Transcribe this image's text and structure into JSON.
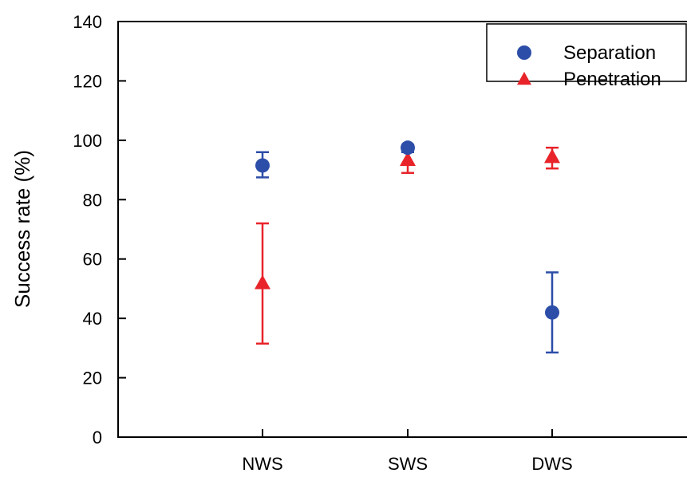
{
  "chart_data": {
    "type": "scatter",
    "title": "",
    "xlabel": "",
    "ylabel": "Success rate (%)",
    "categories": [
      "NWS",
      "SWS",
      "DWS"
    ],
    "ylim": [
      0,
      140
    ],
    "yticks": [
      0,
      20,
      40,
      60,
      80,
      100,
      120,
      140
    ],
    "grid": false,
    "legend_position": "top-right",
    "series": [
      {
        "name": "Separation",
        "marker": "circle",
        "color": "#2d4ea8",
        "values": [
          91.5,
          97.5,
          42
        ],
        "error_low": [
          87.5,
          96,
          28.5
        ],
        "error_high": [
          96,
          98.5,
          55.5
        ]
      },
      {
        "name": "Penetration",
        "marker": "triangle",
        "color": "#e8242a",
        "values": [
          52,
          93.5,
          94.5
        ],
        "error_low": [
          31.5,
          89,
          90.5
        ],
        "error_high": [
          72,
          97,
          97.5
        ]
      }
    ]
  }
}
